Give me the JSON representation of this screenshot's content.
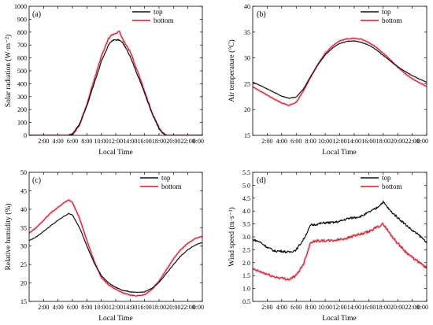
{
  "colors": {
    "top": "#111111",
    "bottom": "#c0241d",
    "bottom_halo": "#f3b6d2"
  },
  "x_ticks": [
    "2:00",
    "4:00",
    "6:00",
    "8:00",
    "10:00",
    "12:00",
    "14:00",
    "16:00",
    "18:00",
    "20:00",
    "22:00",
    "0:00"
  ],
  "chart_data": [
    {
      "type": "line",
      "panel_label": "(a)",
      "xlabel": "Local Time",
      "ylabel": "Solar radiation (W·m⁻²)",
      "x_ticks": [
        "2:00",
        "4:00",
        "6:00",
        "8:00",
        "10:00",
        "12:00",
        "14:00",
        "16:00",
        "18:00",
        "20:00",
        "22:00",
        "0:00"
      ],
      "y_ticks": [
        "0",
        "100",
        "200",
        "300",
        "400",
        "500",
        "600",
        "700",
        "800",
        "900",
        "1000"
      ],
      "ylim": [
        0,
        1000
      ],
      "xlim_hours": [
        0,
        24
      ],
      "legend_position": "top-right",
      "grid": false,
      "x": [
        0,
        2,
        4,
        5.5,
        6,
        7,
        8,
        9,
        10,
        11,
        11.5,
        12,
        12.5,
        13,
        14,
        15,
        16,
        17,
        18,
        18.5,
        19,
        20,
        22,
        24
      ],
      "series": [
        {
          "name": "top",
          "values": [
            0,
            0,
            0,
            0,
            10,
            90,
            230,
            400,
            570,
            700,
            735,
            740,
            738,
            715,
            615,
            470,
            330,
            175,
            50,
            15,
            0,
            0,
            0,
            0
          ]
        },
        {
          "name": "bottom",
          "values": [
            0,
            0,
            0,
            0,
            5,
            80,
            240,
            430,
            610,
            750,
            780,
            790,
            805,
            740,
            650,
            500,
            340,
            180,
            60,
            20,
            0,
            0,
            0,
            0
          ]
        }
      ]
    },
    {
      "type": "line",
      "panel_label": "(b)",
      "xlabel": "Local Time",
      "ylabel": "Air temperature (°C)",
      "x_ticks": [
        "2:00",
        "4:00",
        "6:00",
        "8:00",
        "10:00",
        "12:00",
        "14:00",
        "16:00",
        "18:00",
        "20:00",
        "22:00",
        "0:00"
      ],
      "y_ticks": [
        "15",
        "20",
        "25",
        "30",
        "35",
        "40"
      ],
      "ylim": [
        15,
        40
      ],
      "xlim_hours": [
        0,
        24
      ],
      "legend_position": "top-right",
      "grid": false,
      "x": [
        0,
        1,
        2,
        3,
        4,
        5,
        6,
        7,
        8,
        9,
        10,
        11,
        12,
        13,
        14,
        15,
        16,
        17,
        18,
        19,
        20,
        21,
        22,
        23,
        24
      ],
      "series": [
        {
          "name": "top",
          "values": [
            25.3,
            24.7,
            24.0,
            23.3,
            22.6,
            22.2,
            22.4,
            24.0,
            26.4,
            28.7,
            30.6,
            31.9,
            32.8,
            33.2,
            33.3,
            33.0,
            32.5,
            31.6,
            30.5,
            29.4,
            28.3,
            27.4,
            26.6,
            25.9,
            25.3
          ]
        },
        {
          "name": "bottom",
          "values": [
            24.4,
            23.6,
            22.8,
            22.0,
            21.3,
            20.8,
            21.4,
            23.6,
            26.3,
            28.8,
            30.9,
            32.3,
            33.3,
            33.7,
            33.8,
            33.6,
            33.0,
            32.1,
            30.9,
            29.6,
            28.2,
            27.0,
            26.0,
            25.2,
            24.5
          ]
        }
      ]
    },
    {
      "type": "line",
      "panel_label": "(c)",
      "xlabel": "Local Time",
      "ylabel": "Relative humidity (%)",
      "x_ticks": [
        "2:00",
        "4:00",
        "6:00",
        "8:00",
        "10:00",
        "12:00",
        "14:00",
        "16:00",
        "18:00",
        "20:00",
        "22:00",
        "0:00"
      ],
      "y_ticks": [
        "15",
        "20",
        "25",
        "30",
        "35",
        "40",
        "45",
        "50"
      ],
      "ylim": [
        15,
        50
      ],
      "xlim_hours": [
        0,
        24
      ],
      "legend_position": "top-right",
      "grid": false,
      "x": [
        0,
        1,
        2,
        3,
        4,
        5,
        5.5,
        6,
        7,
        8,
        9,
        10,
        11,
        12,
        13,
        14,
        15,
        16,
        17,
        18,
        19,
        20,
        21,
        22,
        23,
        24
      ],
      "series": [
        {
          "name": "top",
          "values": [
            31.5,
            32.5,
            34.0,
            35.5,
            37.0,
            38.3,
            38.8,
            38.4,
            35.0,
            30.0,
            25.5,
            22.0,
            20.0,
            18.8,
            18.0,
            17.6,
            17.4,
            17.6,
            18.5,
            20.2,
            22.5,
            25.0,
            27.3,
            29.0,
            30.3,
            31.0
          ]
        },
        {
          "name": "bottom",
          "values": [
            33.5,
            35.0,
            37.0,
            39.0,
            40.5,
            42.0,
            42.5,
            41.8,
            37.5,
            31.5,
            26.0,
            21.5,
            19.5,
            18.3,
            17.3,
            16.7,
            16.5,
            16.8,
            18.2,
            20.5,
            23.5,
            26.5,
            29.0,
            30.8,
            32.0,
            32.7
          ]
        }
      ]
    },
    {
      "type": "line",
      "panel_label": "(d)",
      "xlabel": "Local Time",
      "ylabel": "Wind speed (m·s⁻¹)",
      "x_ticks": [
        "2:00",
        "4:00",
        "6:00",
        "8:00",
        "10:00",
        "12:00",
        "14:00",
        "16:00",
        "18:00",
        "20:00",
        "22:00",
        "0:00"
      ],
      "y_ticks": [
        "0.5",
        "1.0",
        "1.5",
        "2.0",
        "2.5",
        "3.0",
        "3.5",
        "4.0",
        "4.5",
        "5.0",
        "5.5"
      ],
      "ylim": [
        0.5,
        5.5
      ],
      "xlim_hours": [
        0,
        24
      ],
      "legend_position": "top-right",
      "grid": false,
      "x": [
        0,
        1,
        2,
        3,
        4,
        5,
        6,
        7,
        8,
        9,
        10,
        11,
        12,
        13,
        14,
        15,
        16,
        17,
        18,
        19,
        20,
        21,
        22,
        23,
        24
      ],
      "series": [
        {
          "name": "top",
          "values": [
            2.9,
            2.8,
            2.6,
            2.45,
            2.45,
            2.4,
            2.5,
            2.9,
            3.45,
            3.5,
            3.55,
            3.55,
            3.6,
            3.7,
            3.75,
            3.8,
            3.95,
            4.1,
            4.35,
            4.0,
            3.75,
            3.5,
            3.25,
            3.05,
            2.8
          ]
        },
        {
          "name": "bottom",
          "values": [
            1.75,
            1.65,
            1.55,
            1.45,
            1.4,
            1.35,
            1.5,
            1.95,
            2.8,
            2.85,
            2.85,
            2.85,
            2.9,
            2.95,
            3.05,
            3.1,
            3.2,
            3.35,
            3.5,
            3.1,
            2.75,
            2.45,
            2.2,
            2.0,
            1.8
          ]
        }
      ]
    }
  ]
}
